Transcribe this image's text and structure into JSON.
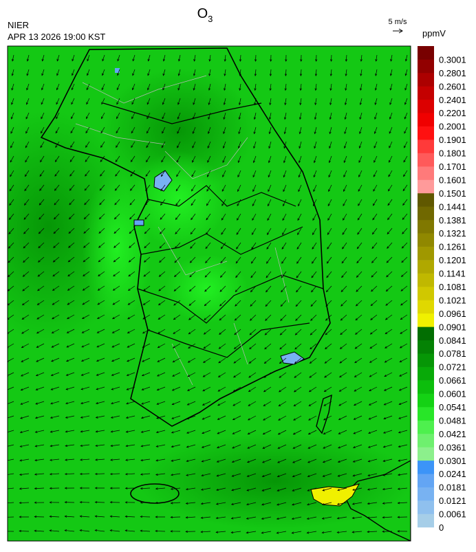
{
  "header": {
    "title": "O",
    "title_subscript": "3",
    "agency": "NIER",
    "timestamp": "APR 13 2026 19:00 KST",
    "wind_scale": "5 m/s"
  },
  "colorbar": {
    "unit": "ppmV",
    "levels": [
      0,
      0.0061,
      0.0121,
      0.0181,
      0.0241,
      0.0301,
      0.0361,
      0.0421,
      0.0481,
      0.0541,
      0.0601,
      0.0661,
      0.0721,
      0.0781,
      0.0841,
      0.0901,
      0.0961,
      0.1021,
      0.1081,
      0.1141,
      0.1201,
      0.1261,
      0.1321,
      0.1381,
      0.1441,
      0.1501,
      0.1601,
      0.1701,
      0.1801,
      0.1901,
      0.2001,
      0.2201,
      0.2401,
      0.2601,
      0.2801,
      0.3001
    ],
    "colors": [
      "#a6cee8",
      "#8fc0ee",
      "#78b2f2",
      "#63a5f4",
      "#3c94f8",
      "#8cf08c",
      "#6ef06e",
      "#4ef04e",
      "#28e628",
      "#14d214",
      "#0cbe0c",
      "#08aa08",
      "#069606",
      "#048204",
      "#026e02",
      "#f0f000",
      "#e0d800",
      "#d0c800",
      "#c0b800",
      "#b0a800",
      "#a09800",
      "#908800",
      "#807800",
      "#706800",
      "#605800",
      "#ff9a9a",
      "#ff7a7a",
      "#ff5a5a",
      "#ff3a3a",
      "#ff1010",
      "#f00000",
      "#dc0000",
      "#c40000",
      "#ac0000",
      "#920000",
      "#780000"
    ]
  }
}
